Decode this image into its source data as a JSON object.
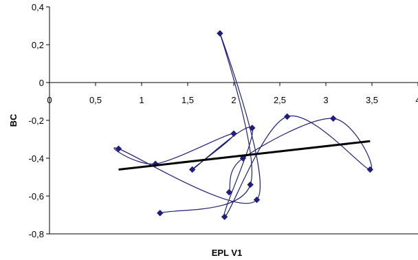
{
  "chart_data": {
    "type": "scatter",
    "xlabel": "EPL V1",
    "ylabel": "BC",
    "xlim": [
      0,
      4
    ],
    "ylim": [
      -0.8,
      0.4
    ],
    "x_ticks": [
      0,
      0.5,
      1,
      1.5,
      2,
      2.5,
      3,
      3.5,
      4
    ],
    "y_ticks": [
      0.4,
      0.2,
      0,
      -0.2,
      -0.4,
      -0.6,
      -0.8
    ],
    "x_tick_labels": [
      "0",
      "0,5",
      "1",
      "1,5",
      "2",
      "2,5",
      "3",
      "3,5",
      "4"
    ],
    "y_tick_labels": [
      "0,4",
      "0,2",
      "0",
      "-0,2",
      "-0,4",
      "-0,6",
      "-0,8"
    ],
    "grid": false,
    "legend": "none",
    "series": [
      {
        "color": "#1f1f7a",
        "marker": "diamond",
        "line": "smoothed",
        "points": [
          {
            "x": 1.2,
            "y": -0.69
          },
          {
            "x": 2.18,
            "y": -0.54
          },
          {
            "x": 1.85,
            "y": 0.26
          },
          {
            "x": 2.25,
            "y": -0.62
          },
          {
            "x": 0.75,
            "y": -0.35
          },
          {
            "x": 1.15,
            "y": -0.43
          },
          {
            "x": 2.0,
            "y": -0.27
          },
          {
            "x": 1.55,
            "y": -0.46
          },
          {
            "x": 2.2,
            "y": -0.24
          },
          {
            "x": 1.9,
            "y": -0.71
          },
          {
            "x": 2.58,
            "y": -0.18
          },
          {
            "x": 3.48,
            "y": -0.46
          },
          {
            "x": 3.08,
            "y": -0.19
          },
          {
            "x": 2.1,
            "y": -0.4
          },
          {
            "x": 1.95,
            "y": -0.58
          }
        ]
      }
    ],
    "trendline": {
      "color": "#000000",
      "from": {
        "x": 0.75,
        "y": -0.46
      },
      "to": {
        "x": 3.48,
        "y": -0.31
      }
    }
  }
}
